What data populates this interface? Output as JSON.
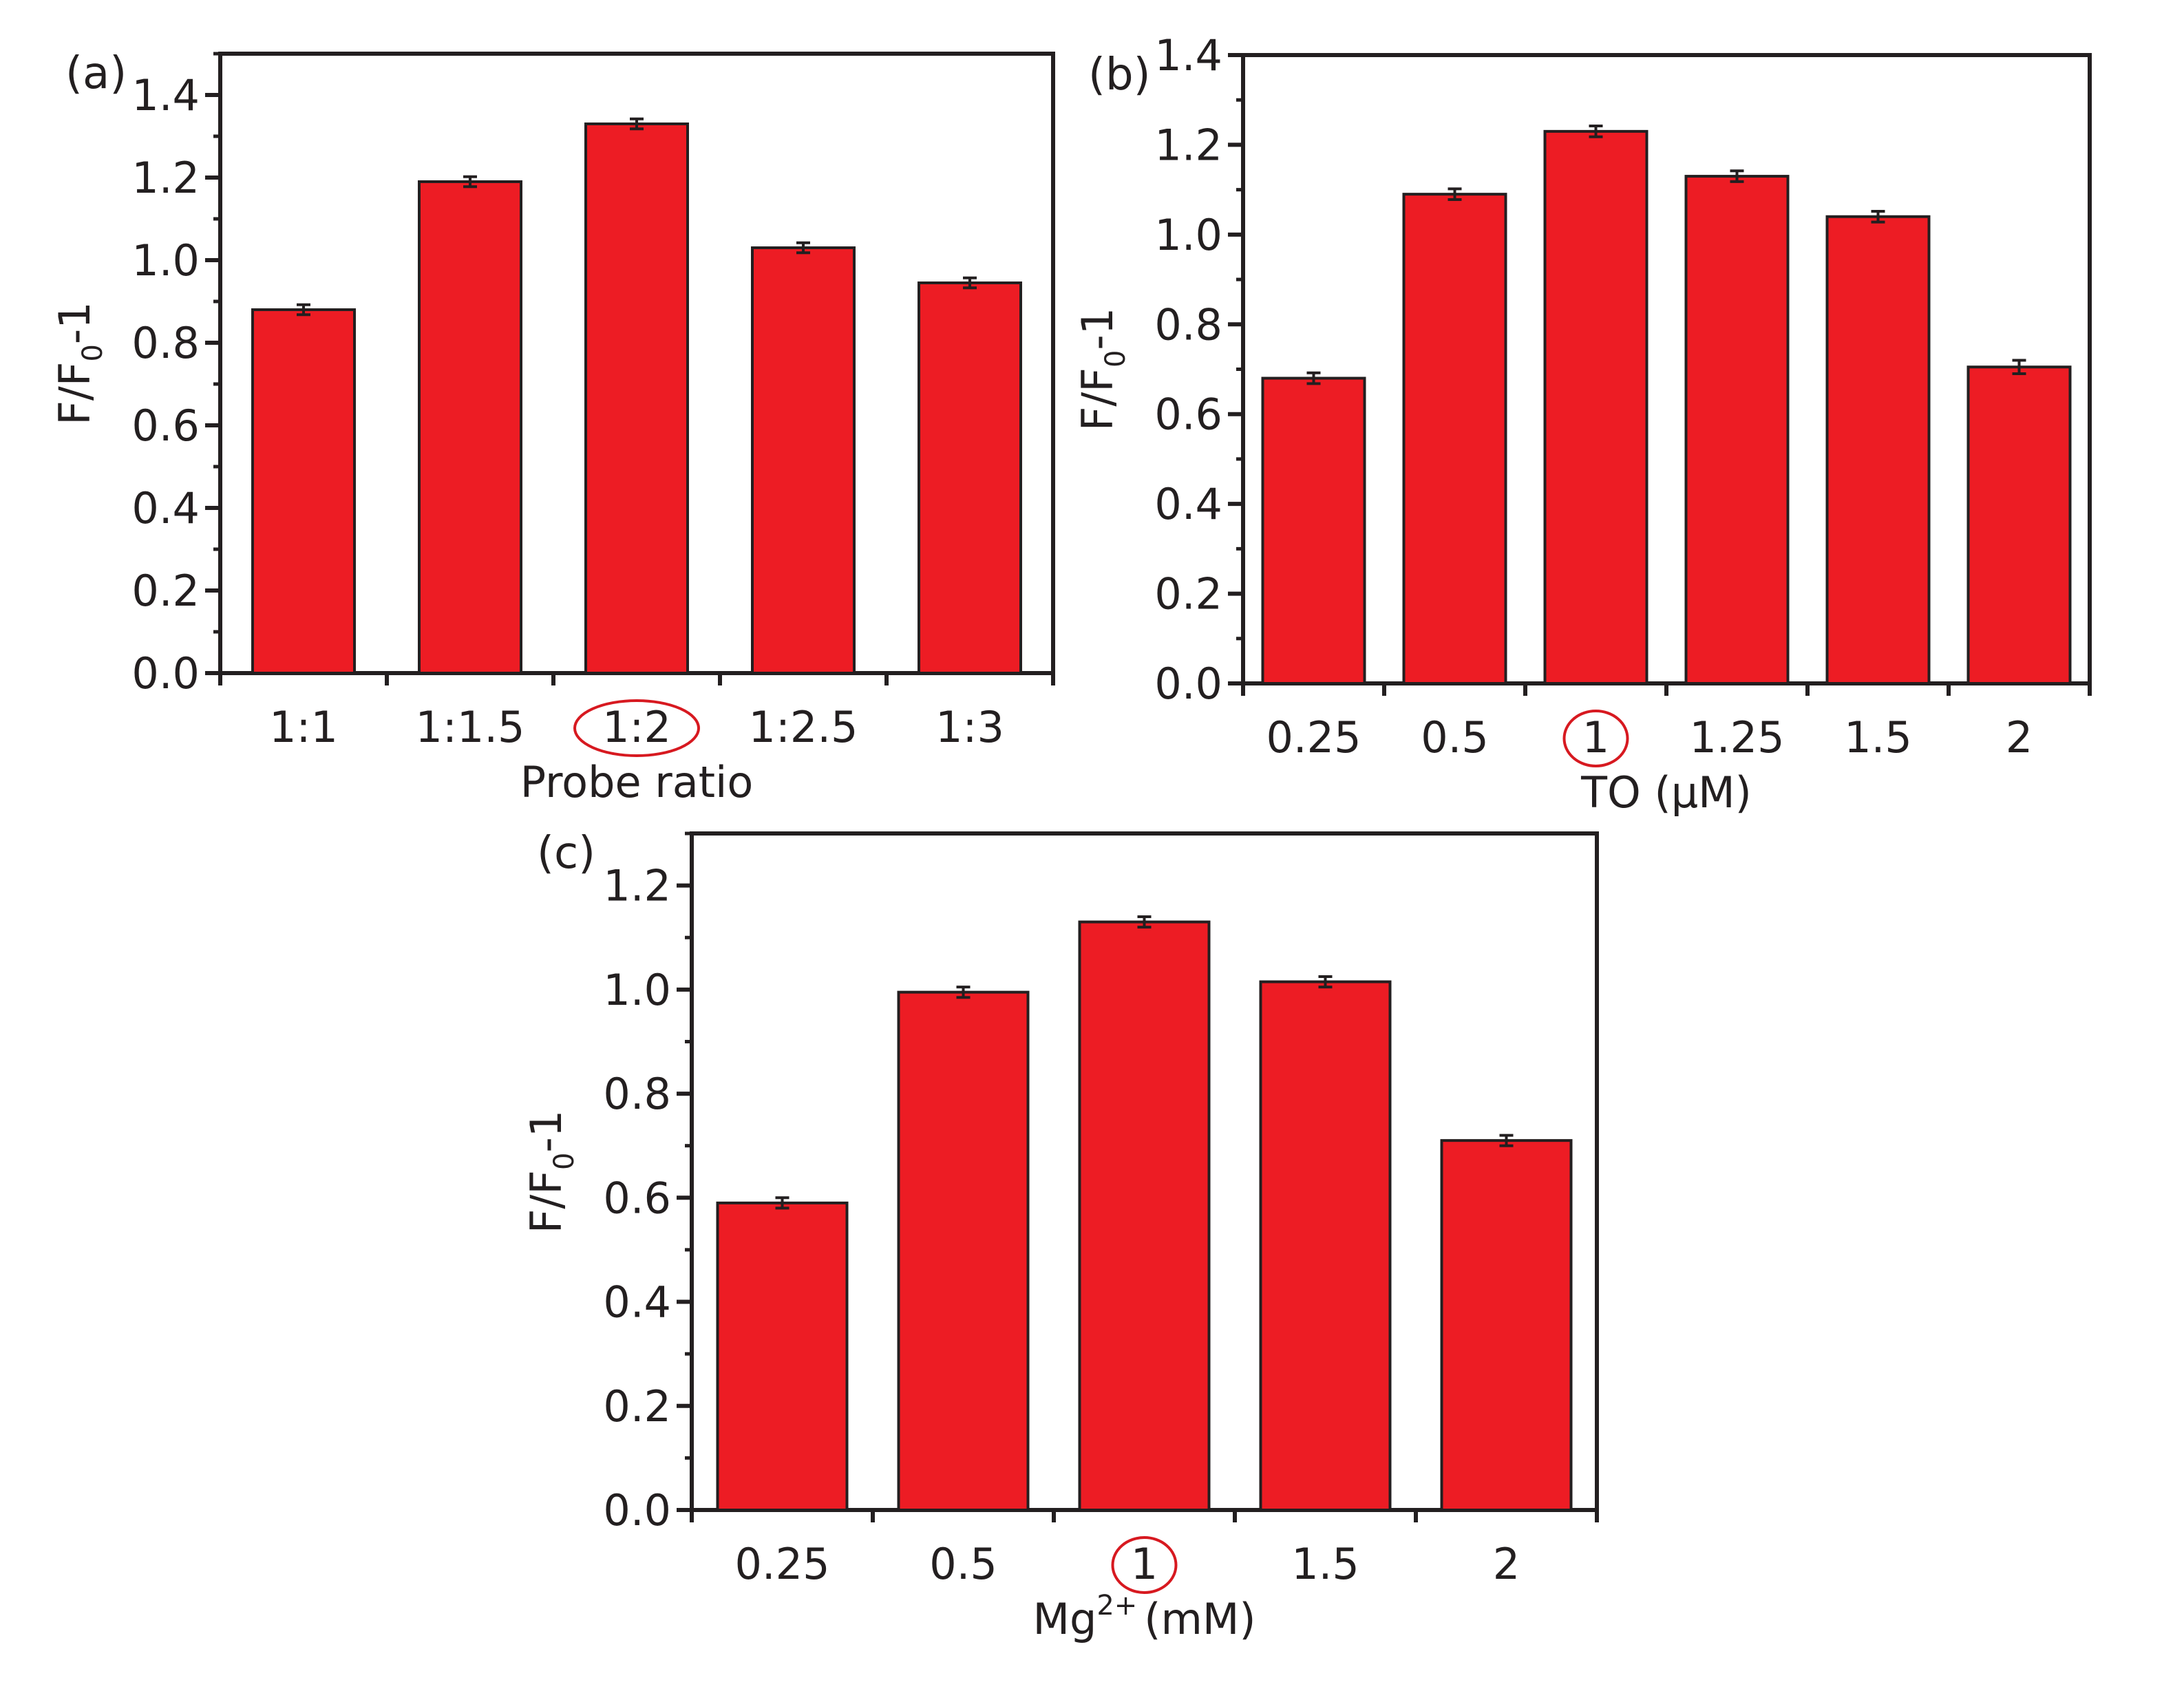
{
  "figure": {
    "bar_color": "#ed1c24",
    "bar_stroke": "#231f20",
    "axis_color": "#231f20",
    "highlight_color": "#d71920"
  },
  "chart_data": [
    {
      "id": "a",
      "panel_label": "(a)",
      "type": "bar",
      "categories": [
        "1:1",
        "1:1.5",
        "1:2",
        "1:2.5",
        "1:3"
      ],
      "values": [
        0.88,
        1.19,
        1.33,
        1.03,
        0.945
      ],
      "errors": [
        0.012,
        0.012,
        0.012,
        0.012,
        0.012
      ],
      "highlight_index": 2,
      "ylabel": {
        "main": "F/F",
        "sub": "0",
        "tail": "-1"
      },
      "xlabel": {
        "main": "Probe ratio",
        "sup": "",
        "tail": ""
      },
      "ylim": [
        0,
        1.5
      ],
      "yticks": [
        "0.0",
        "0.2",
        "0.4",
        "0.6",
        "0.8",
        "1.0",
        "1.2",
        "1.4"
      ],
      "minor_step": 0.1,
      "grid": false,
      "legend": "none"
    },
    {
      "id": "b",
      "panel_label": "(b)",
      "type": "bar",
      "categories": [
        "0.25",
        "0.5",
        "1",
        "1.25",
        "1.5",
        "2"
      ],
      "values": [
        0.68,
        1.09,
        1.23,
        1.13,
        1.04,
        0.705
      ],
      "errors": [
        0.012,
        0.012,
        0.012,
        0.012,
        0.012,
        0.015
      ],
      "highlight_index": 2,
      "ylabel": {
        "main": "F/F",
        "sub": "0",
        "tail": "-1"
      },
      "xlabel": {
        "main": "TO (μM)",
        "sup": "",
        "tail": ""
      },
      "ylim": [
        0,
        1.4
      ],
      "yticks": [
        "0.0",
        "0.2",
        "0.4",
        "0.6",
        "0.8",
        "1.0",
        "1.2",
        "1.4"
      ],
      "minor_step": 0.1,
      "grid": false,
      "legend": "none"
    },
    {
      "id": "c",
      "panel_label": "(c)",
      "type": "bar",
      "categories": [
        "0.25",
        "0.5",
        "1",
        "1.5",
        "2"
      ],
      "values": [
        0.59,
        0.995,
        1.13,
        1.015,
        0.71
      ],
      "errors": [
        0.01,
        0.01,
        0.01,
        0.01,
        0.01
      ],
      "highlight_index": 2,
      "ylabel": {
        "main": "F/F",
        "sub": "0",
        "tail": "-1"
      },
      "xlabel": {
        "main": "Mg",
        "sup": "2+",
        "tail": "(mM)"
      },
      "ylim": [
        0,
        1.3
      ],
      "yticks": [
        "0.0",
        "0.2",
        "0.4",
        "0.6",
        "0.8",
        "1.0",
        "1.2"
      ],
      "minor_step": 0.1,
      "grid": false,
      "legend": "none"
    }
  ]
}
